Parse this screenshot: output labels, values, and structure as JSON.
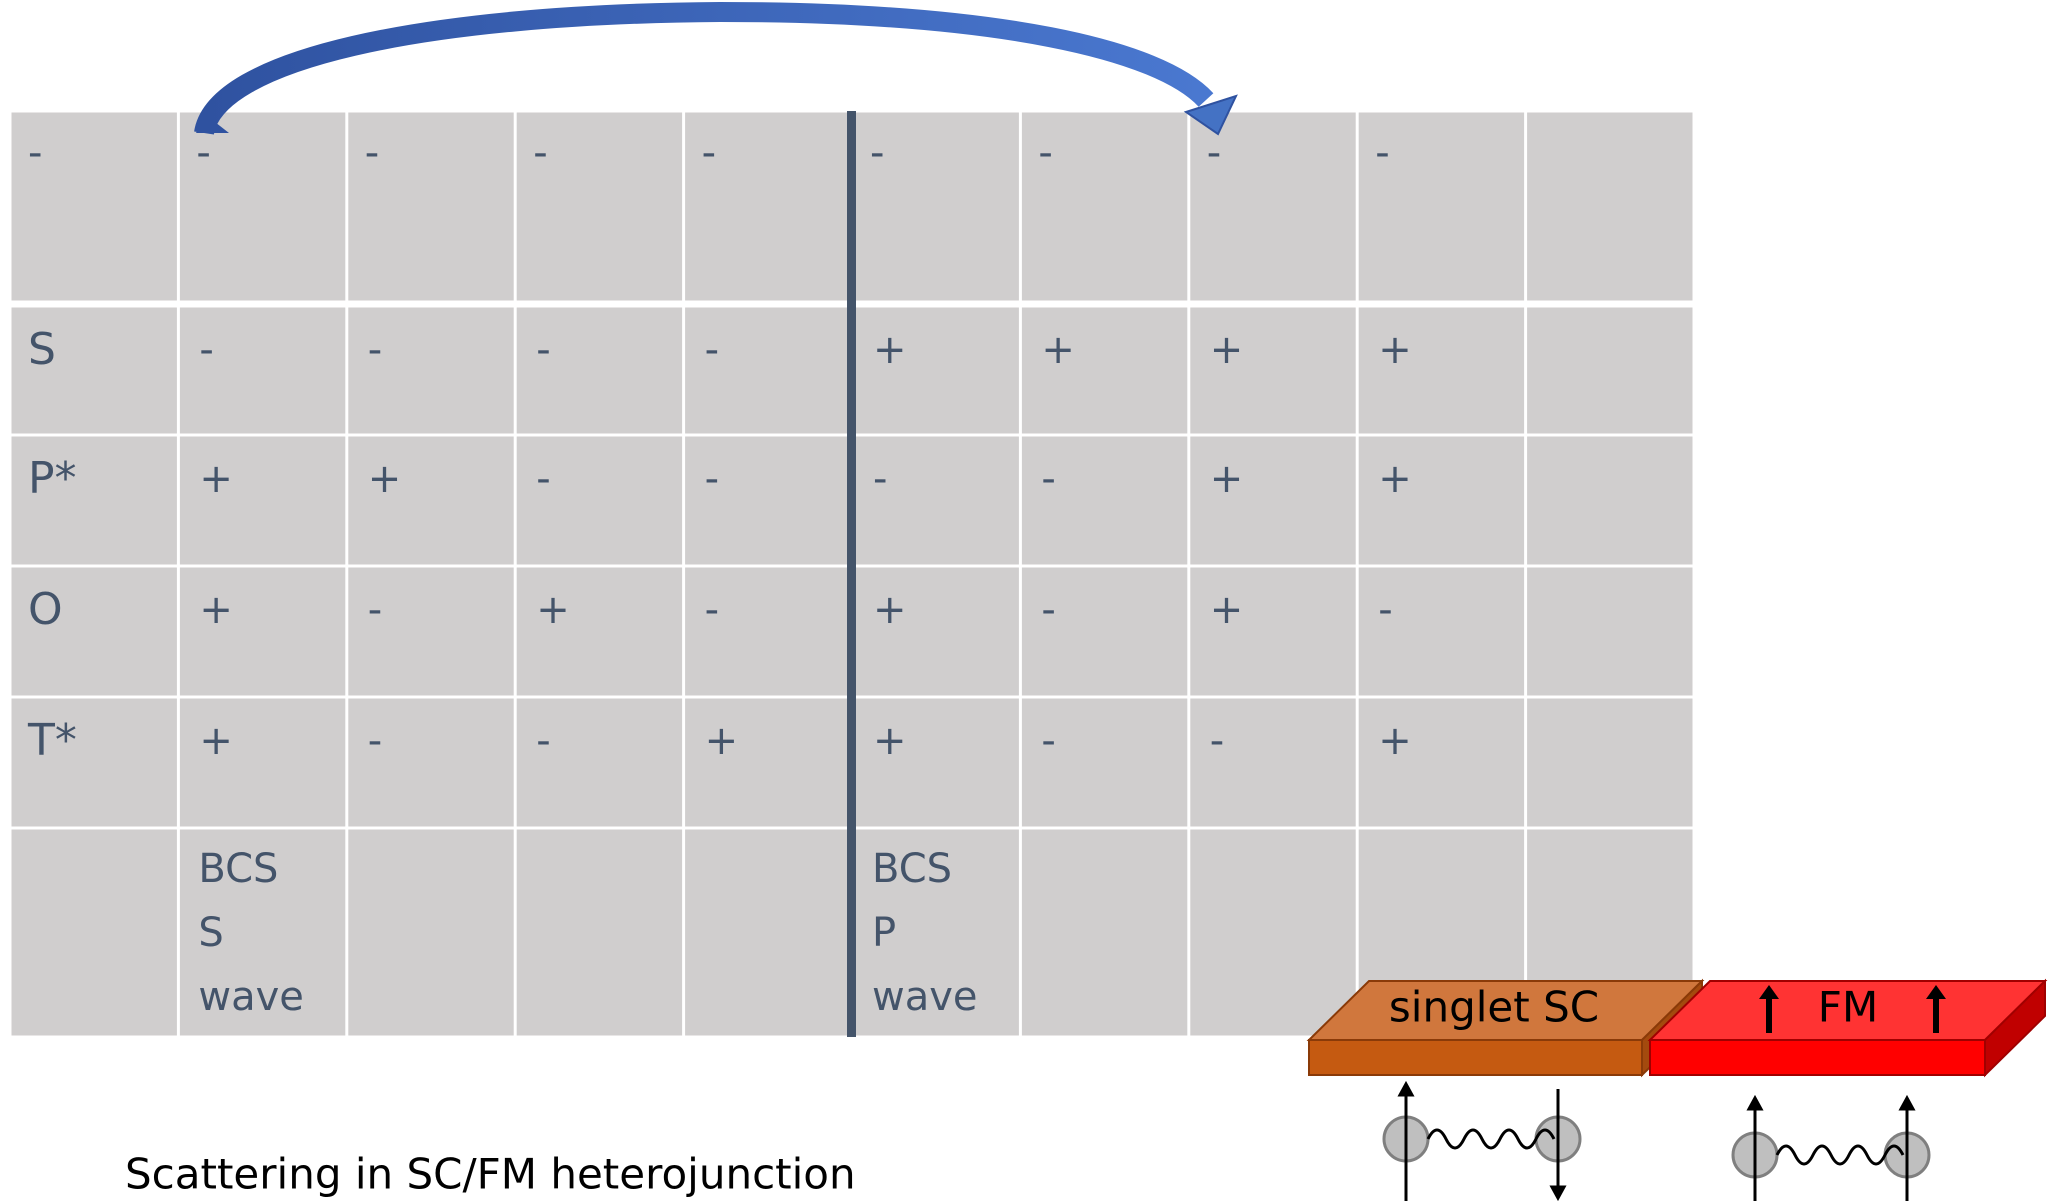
{
  "table": {
    "header": [
      "-",
      "-",
      "-",
      "-",
      "-",
      "-",
      "-",
      "-",
      "-"
    ],
    "rows": [
      {
        "label": "S",
        "cells": [
          "-",
          "-",
          "-",
          "-",
          "+",
          "+",
          "+",
          "+"
        ]
      },
      {
        "label": "P*",
        "cells": [
          "+",
          "+",
          "-",
          "-",
          "-",
          "-",
          "+",
          "+"
        ]
      },
      {
        "label": "O",
        "cells": [
          "+",
          "-",
          "+",
          "-",
          "+",
          "-",
          "+",
          "-"
        ]
      },
      {
        "label": "T*",
        "cells": [
          "+",
          "-",
          "-",
          "+",
          "+",
          "-",
          "-",
          "+"
        ]
      }
    ],
    "footer": [
      [
        "BCS",
        "S",
        "wave"
      ],
      [
        "BCS",
        "P",
        "wave"
      ]
    ]
  },
  "junction": {
    "left": "singlet SC",
    "right": "FM"
  },
  "caption": "Scattering in SC/FM heterojunction"
}
